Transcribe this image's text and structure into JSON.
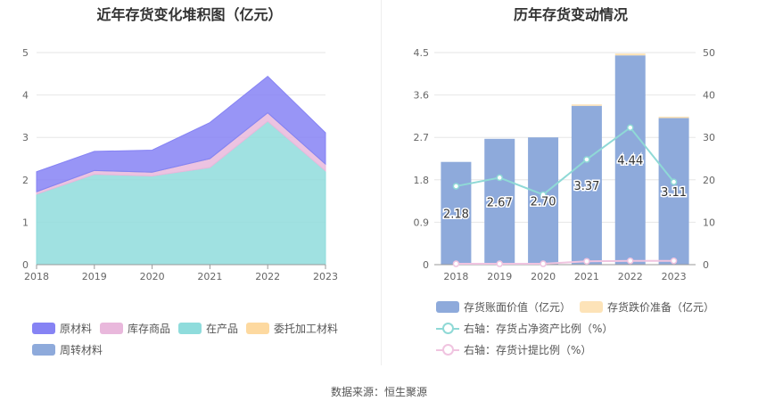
{
  "left_title": "近年存货变化堆积图（亿元）",
  "right_title": "历年存货变动情况",
  "source": "数据来源：恒生聚源",
  "chart_data": [
    {
      "type": "area",
      "stacked": true,
      "title": "近年存货变化堆积图（亿元）",
      "x": [
        "2018",
        "2019",
        "2020",
        "2021",
        "2022",
        "2023"
      ],
      "y_ticks": [
        "0",
        "1",
        "2",
        "3",
        "4",
        "5"
      ],
      "ylim": [
        0,
        5
      ],
      "series": [
        {
          "name": "在产品",
          "color": "#8fdcdc",
          "values": [
            1.66,
            2.13,
            2.09,
            2.29,
            3.38,
            2.21
          ]
        },
        {
          "name": "库存商品",
          "color": "#e9b8dc",
          "values": [
            0.06,
            0.09,
            0.09,
            0.21,
            0.2,
            0.16
          ]
        },
        {
          "name": "委托加工材料",
          "color": "#fdd9a0",
          "values": [
            0.0,
            0.0,
            0.0,
            0.0,
            0.0,
            0.0
          ]
        },
        {
          "name": "周转材料",
          "color": "#8eaadb",
          "values": [
            0.0,
            0.0,
            0.0,
            0.0,
            0.0,
            0.0
          ]
        },
        {
          "name": "原材料",
          "color": "#8683f4",
          "values": [
            0.47,
            0.45,
            0.52,
            0.85,
            0.86,
            0.74
          ]
        }
      ],
      "legend": [
        "原材料",
        "库存商品",
        "在产品",
        "委托加工材料",
        "周转材料"
      ]
    },
    {
      "type": "bar+line",
      "title": "历年存货变动情况",
      "x": [
        "2018",
        "2019",
        "2020",
        "2021",
        "2022",
        "2023"
      ],
      "y_left_ticks": [
        "0",
        "0.9",
        "1.8",
        "2.7",
        "3.6",
        "4.5"
      ],
      "y_left_lim": [
        0,
        4.5
      ],
      "y_right_ticks": [
        "0",
        "10",
        "20",
        "30",
        "40",
        "50"
      ],
      "y_right_lim": [
        0,
        50
      ],
      "bars": [
        {
          "name": "存货账面价值（亿元）",
          "color": "#8eaadb",
          "values": [
            2.18,
            2.67,
            2.7,
            3.37,
            4.44,
            3.11
          ],
          "labels": [
            "2.18",
            "2.67",
            "2.70",
            "3.37",
            "4.44",
            "3.11"
          ]
        },
        {
          "name": "存货跌价准备（亿元）",
          "color": "#fde3b8",
          "values": [
            0.0,
            0.0,
            0.0,
            0.03,
            0.04,
            0.03
          ]
        }
      ],
      "lines": [
        {
          "name": "右轴：存货占净资产比例（%）",
          "color": "#8fd9d6",
          "values": [
            18.5,
            20.5,
            16.5,
            24.8,
            32.3,
            19.5
          ]
        },
        {
          "name": "右轴：存货计提比例（%）",
          "color": "#f0c4e0",
          "values": [
            0.2,
            0.2,
            0.2,
            0.8,
            0.9,
            0.9
          ]
        }
      ]
    }
  ]
}
